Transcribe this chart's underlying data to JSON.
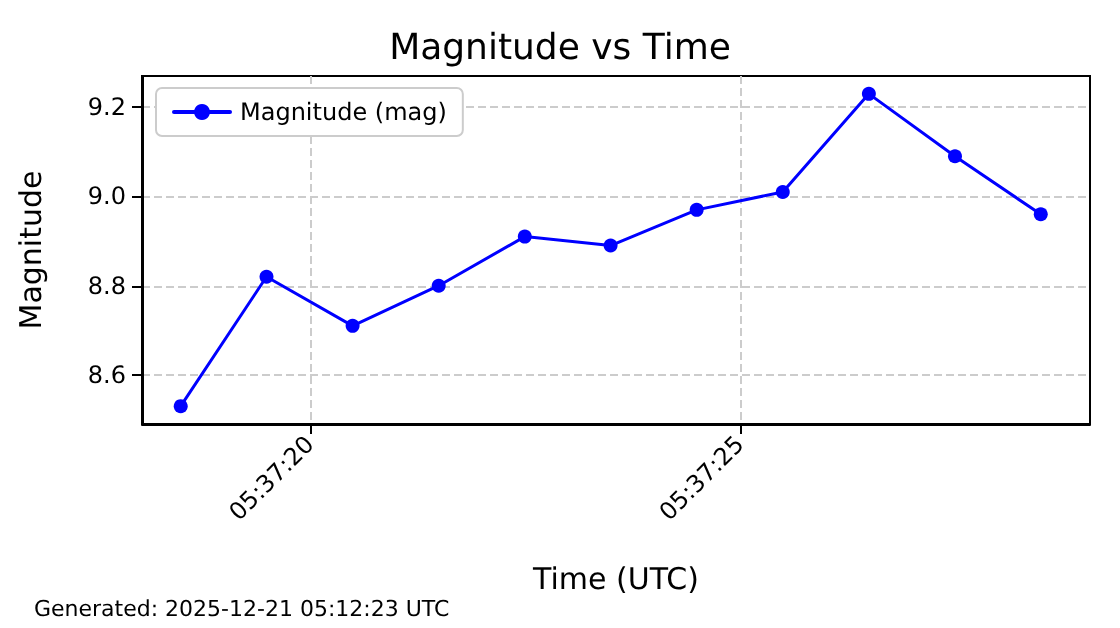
{
  "chart_data": {
    "type": "line",
    "title": "Magnitude vs Time",
    "xlabel": "Time (UTC)",
    "ylabel": "Magnitude",
    "x": [
      5.621806,
      5.622083,
      5.622361,
      5.622639,
      5.622917,
      5.623194,
      5.623472,
      5.62375,
      5.624028,
      5.624306,
      5.624583
    ],
    "series": [
      {
        "name": "Magnitude (mag)",
        "color": "#0000ff",
        "values": [
          8.53,
          8.82,
          8.71,
          8.8,
          8.91,
          8.89,
          8.97,
          9.01,
          9.23,
          9.09,
          8.96
        ]
      }
    ],
    "xlim": [
      5.621681,
      5.624742
    ],
    "xticks": [
      {
        "value": 5.622222,
        "label": "05:37:20"
      },
      {
        "value": 5.623611,
        "label": "05:37:25"
      }
    ],
    "ylim": [
      8.49,
      9.27
    ],
    "yticks": [
      {
        "value": 8.6,
        "label": "8.6"
      },
      {
        "value": 8.8,
        "label": "8.8"
      },
      {
        "value": 9.0,
        "label": "9.0"
      },
      {
        "value": 9.2,
        "label": "9.2"
      }
    ],
    "grid": true,
    "legend": "top left",
    "marker": "circle",
    "line_style": "solid",
    "annotations": [
      "Generated: 2025-12-21 05:12:23 UTC"
    ]
  }
}
